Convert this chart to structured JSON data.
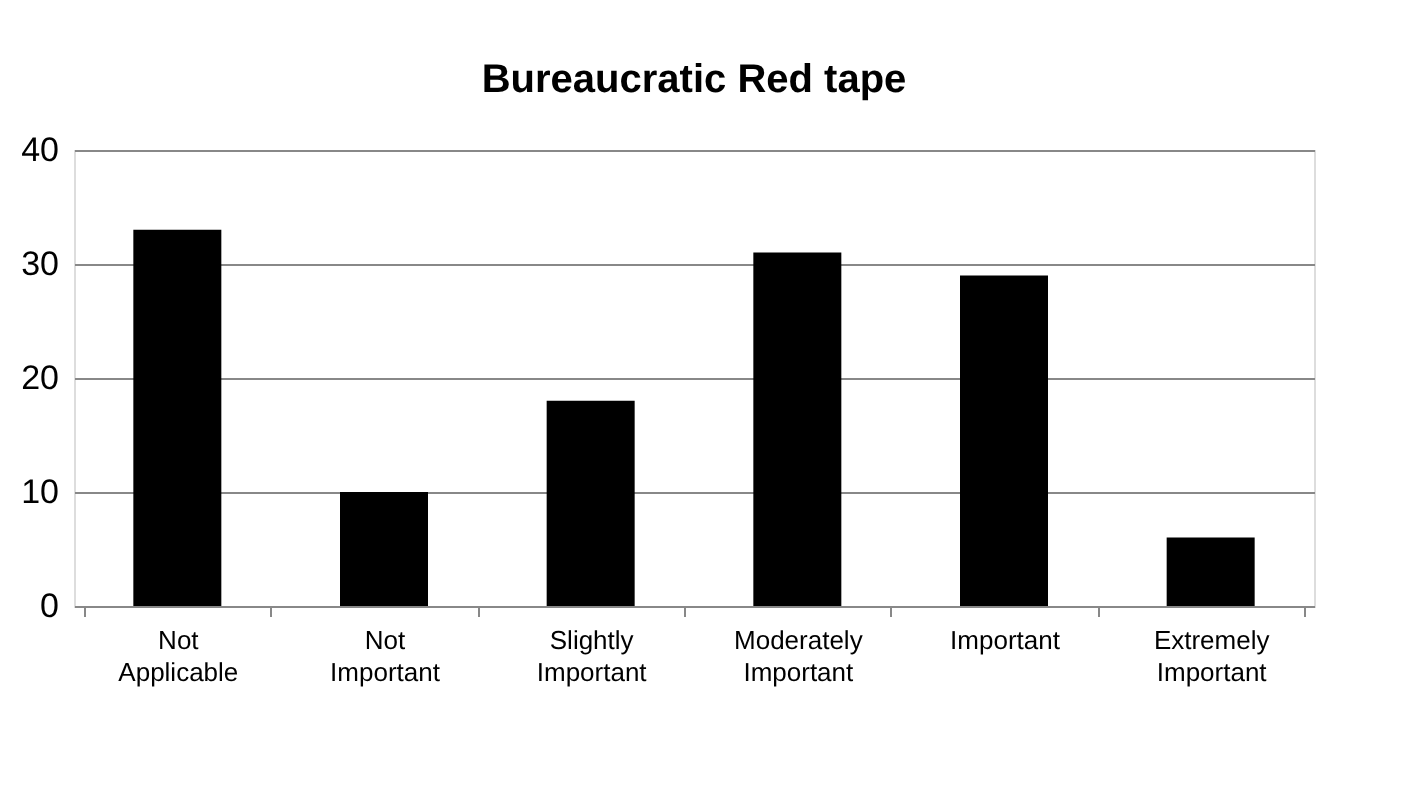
{
  "chart_data": {
    "type": "bar",
    "title": "Bureaucratic Red tape",
    "categories": [
      "Not Applicable",
      "Not Important",
      "Slightly Important",
      "Moderately Important",
      "Important",
      "Extremely Important"
    ],
    "values": [
      33,
      10,
      18,
      31,
      29,
      6
    ],
    "color": "#000000",
    "ylim": [
      0,
      40
    ],
    "yticks": [
      0,
      10,
      20,
      30,
      40
    ],
    "grid": "y"
  }
}
